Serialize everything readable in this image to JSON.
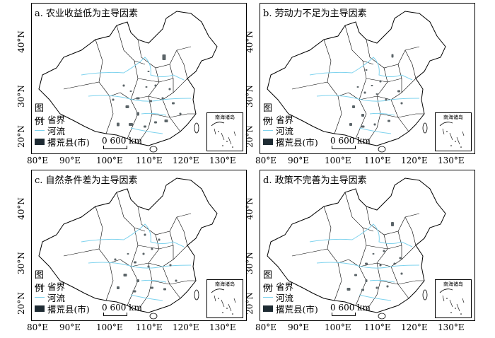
{
  "panels": [
    {
      "title": "a. 农业收益低为主导因素"
    },
    {
      "title": "b. 劳动力不足为主导因素"
    },
    {
      "title": "c. 自然条件差为主导因素"
    },
    {
      "title": "d. 政策不完善为主导因素"
    }
  ],
  "latitude_labels": [
    "40°N",
    "30°N",
    "20°N"
  ],
  "longitude_labels": [
    "80°E",
    "90°E",
    "100°E",
    "110°E",
    "120°E",
    "130°E"
  ],
  "legend": {
    "title": "图例",
    "items": [
      {
        "label": "省界",
        "icon": "boundary-line-icon"
      },
      {
        "label": "河流",
        "icon": "river-line-icon"
      },
      {
        "label": "撂荒县(市)",
        "icon": "abandoned-county-swatch-icon"
      }
    ]
  },
  "scale_bar": {
    "label": "0  600 km"
  },
  "inset": {
    "label": "南海诸岛"
  },
  "colors": {
    "boundary": "#000000",
    "river": "#7fd3ee",
    "county": "#5b6468"
  }
}
